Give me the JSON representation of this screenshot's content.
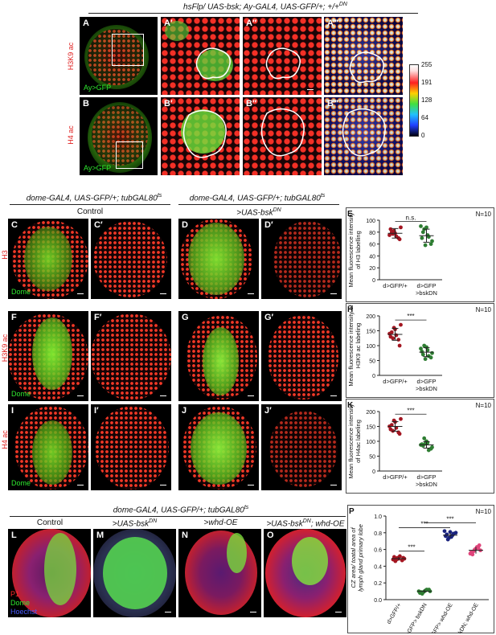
{
  "top_section": {
    "title": "hsFlp/ UAS-bsk; Ay-GAL4, UAS-GFP/+; +/+",
    "title_superscript": "DN",
    "row_labels": [
      "H3K9 ac",
      "H4 ac"
    ],
    "in_labels": [
      "Ay>GFP",
      "Ay>GFP"
    ],
    "panel_letters_row1": [
      "A",
      "A′",
      "A″",
      "A‴"
    ],
    "panel_letters_row2": [
      "B",
      "B′",
      "B″",
      "B‴"
    ],
    "colorbar_ticks": [
      "255",
      "191",
      "128",
      "64",
      "0"
    ]
  },
  "middle_section": {
    "left_title": "dome-GAL4, UAS-GFP/+; tubGAL80",
    "left_title_sup": "ts",
    "right_title": "dome-GAL4, UAS-GFP/+; tubGAL80",
    "right_title_sup": "ts",
    "left_subtitle": "Control",
    "right_subtitle": ">UAS-bsk",
    "right_subtitle_sup": "DN",
    "row_labels": [
      "H3",
      "H3K9 ac",
      "H4 ac"
    ],
    "in_labels": [
      "Dome",
      "Dome",
      "Dome"
    ],
    "panel_letters": [
      [
        "C",
        "C′",
        "D",
        "D′"
      ],
      [
        "F",
        "F′",
        "G",
        "G′"
      ],
      [
        "I",
        "I′",
        "J",
        "J′"
      ]
    ]
  },
  "bottom_section": {
    "title": "dome-GAL4, UAS-GFP/+; tubGAL80",
    "title_sup": "ts",
    "col_titles": [
      "Control",
      ">UAS-bsk",
      ">whd-OE",
      ">UAS-bsk"
    ],
    "col_title_sups": [
      "",
      "DN",
      "",
      "DN"
    ],
    "col_title_suffix": [
      "",
      "",
      "",
      "; whd-OE"
    ],
    "panel_letters": [
      "L",
      "M",
      "N",
      "O"
    ],
    "stain_labels": [
      "P1",
      "Dome",
      "Hoechst"
    ]
  },
  "chart_data": [
    {
      "type": "scatter",
      "panel": "E",
      "n_label": "N=10",
      "ylabel": "Mean fluorescence intensity of H3 labelling",
      "ylim": [
        0,
        100
      ],
      "yticks": [
        0,
        20,
        40,
        60,
        80,
        100
      ],
      "categories": [
        "d>GFP/+",
        "d>GFP >bskDN"
      ],
      "significance": "n.s.",
      "colors": [
        "#a31621",
        "#2e7d32"
      ],
      "series": [
        {
          "values": [
            75,
            82,
            70,
            85,
            78,
            68,
            80,
            73,
            88,
            77
          ],
          "mean": 78,
          "sd": 8
        },
        {
          "values": [
            70,
            88,
            60,
            80,
            75,
            65,
            85,
            72,
            90,
            58
          ],
          "mean": 74,
          "sd": 11
        }
      ]
    },
    {
      "type": "scatter",
      "panel": "H",
      "n_label": "N=10",
      "ylabel": "Mean fluorescence intensity of H3K9 ac labeling",
      "ylim": [
        0,
        200
      ],
      "yticks": [
        0,
        50,
        100,
        150,
        200
      ],
      "categories": [
        "d>GFP/+",
        "d>GFP >bskDN"
      ],
      "significance": "***",
      "colors": [
        "#a31621",
        "#2e7d32"
      ],
      "series": [
        {
          "values": [
            140,
            160,
            120,
            130,
            155,
            100,
            145,
            135,
            170,
            125
          ],
          "mean": 138,
          "sd": 20
        },
        {
          "values": [
            80,
            95,
            60,
            70,
            85,
            75,
            100,
            65,
            90,
            55
          ],
          "mean": 78,
          "sd": 15
        }
      ]
    },
    {
      "type": "scatter",
      "panel": "K",
      "n_label": "N=10",
      "ylabel": "Mean fluorescence intensity of H4ac labeling",
      "ylim": [
        0,
        200
      ],
      "yticks": [
        0,
        50,
        100,
        150,
        200
      ],
      "categories": [
        "d>GFP/+",
        "d>GFP >bskDN"
      ],
      "significance": "***",
      "colors": [
        "#a31621",
        "#2e7d32"
      ],
      "series": [
        {
          "values": [
            150,
            170,
            130,
            140,
            165,
            125,
            155,
            145,
            175,
            135
          ],
          "mean": 150,
          "sd": 16
        },
        {
          "values": [
            90,
            100,
            75,
            85,
            95,
            80,
            110,
            70,
            88,
            92
          ],
          "mean": 88,
          "sd": 11
        }
      ]
    },
    {
      "type": "scatter",
      "panel": "P",
      "n_label": "N=10",
      "ylabel": "CZ area/ toatal area of lymph gland primary lobe",
      "ylim": [
        0,
        1.0
      ],
      "yticks": [
        0,
        0.2,
        0.4,
        0.6,
        0.8,
        1.0
      ],
      "categories": [
        "d>GFP/+",
        "d>GFP> bskDN",
        "d>GFP> whd-OE",
        "d>GFP> bskDN; whd-OE"
      ],
      "significance": [
        "***",
        "***",
        "***"
      ],
      "colors": [
        "#a31621",
        "#2e7d32",
        "#1a237e",
        "#e0457b"
      ],
      "series": [
        {
          "values": [
            0.48,
            0.5,
            0.47,
            0.51,
            0.49,
            0.5,
            0.46,
            0.52,
            0.49,
            0.48
          ],
          "mean": 0.49,
          "sd": 0.02
        },
        {
          "values": [
            0.08,
            0.1,
            0.12,
            0.09,
            0.11,
            0.1,
            0.07,
            0.12,
            0.1,
            0.09
          ],
          "mean": 0.1,
          "sd": 0.02
        },
        {
          "values": [
            0.78,
            0.75,
            0.8,
            0.72,
            0.77,
            0.82,
            0.74,
            0.79,
            0.76,
            0.81
          ],
          "mean": 0.77,
          "sd": 0.03
        },
        {
          "values": [
            0.58,
            0.62,
            0.55,
            0.6,
            0.65,
            0.57,
            0.61,
            0.59,
            0.54,
            0.63
          ],
          "mean": 0.59,
          "sd": 0.04
        }
      ]
    }
  ]
}
